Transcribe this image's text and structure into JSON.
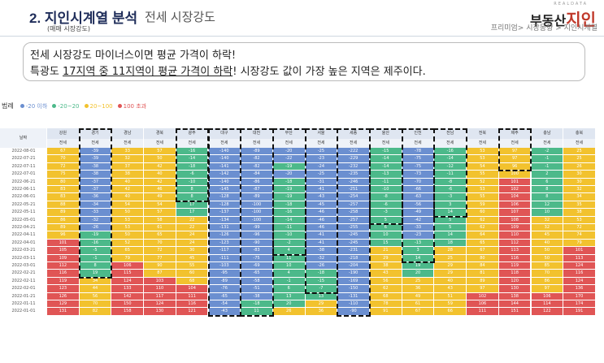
{
  "header": {
    "section_number": "2.",
    "section_title": "지인시계열 분석",
    "section_subtitle": "전세 시장강도",
    "small_note": "(매매 시장강도)",
    "logo_small": "REALDATA",
    "logo_text_a": "부동산",
    "logo_text_b": "지인",
    "breadcrumb": "프리미엄> 시장동향 > 지인시계열"
  },
  "callout": {
    "line1": "전세 시장강도 마이너스이면 평균 가격이 하락!",
    "line2_part1": "특광도 ",
    "line2_underline": "17지역 중 11지역이 평균 가격이 하락",
    "line2_part2": "! 시장강도 값이 가장 높은 지역은 제주이다."
  },
  "legend": {
    "label": "범례",
    "items": [
      {
        "text": "-20 이하",
        "color": "#6b8fd0"
      },
      {
        "text": "-20~20",
        "color": "#4cb98a"
      },
      {
        "text": "20~100",
        "color": "#f2c22e"
      },
      {
        "text": "100 초과",
        "color": "#e05555"
      }
    ]
  },
  "table": {
    "date_header": "날짜",
    "regions": [
      "강원",
      "경기",
      "경남",
      "경북",
      "광주",
      "대구",
      "대전",
      "부산",
      "서울",
      "세종",
      "울산",
      "인천",
      "전남",
      "전북",
      "제주",
      "충남",
      "충북"
    ],
    "subheader": "전세",
    "dates": [
      "2022-08-01",
      "2022-07-21",
      "2022-07-11",
      "2022-07-01",
      "2022-06-21",
      "2022-06-11",
      "2022-06-01",
      "2022-05-21",
      "2022-05-11",
      "2022-05-01",
      "2022-04-21",
      "2022-04-11",
      "2022-04-01",
      "2022-03-21",
      "2022-03-11",
      "2022-03-01",
      "2022-02-21",
      "2022-02-11",
      "2022-02-01",
      "2022-01-21",
      "2022-01-11",
      "2022-01-01"
    ],
    "rows": [
      [
        67,
        -39,
        33,
        57,
        -16,
        -140,
        -89,
        -20,
        -25,
        -222,
        -15,
        -78,
        -16,
        53,
        97,
        -2,
        25
      ],
      [
        70,
        -39,
        32,
        50,
        -14,
        -140,
        -82,
        -22,
        -23,
        -229,
        -14,
        -75,
        -14,
        53,
        97,
        -1,
        25
      ],
      [
        72,
        -38,
        37,
        42,
        -18,
        -141,
        -82,
        -19,
        -24,
        -232,
        -14,
        -75,
        -12,
        54,
        96,
        -1,
        26
      ],
      [
        75,
        -38,
        38,
        40,
        -6,
        -142,
        -84,
        -20,
        -25,
        -235,
        -13,
        -73,
        -11,
        55,
        100,
        2,
        30
      ],
      [
        80,
        -37,
        40,
        42,
        -10,
        -140,
        -86,
        -18,
        -31,
        -246,
        -11,
        -70,
        -8,
        52,
        101,
        6,
        30
      ],
      [
        83,
        -37,
        42,
        46,
        8,
        -145,
        -87,
        -19,
        -41,
        -251,
        -10,
        -66,
        -6,
        53,
        102,
        8,
        32
      ],
      [
        83,
        -36,
        40,
        49,
        8,
        -128,
        -89,
        -19,
        -43,
        -254,
        -8,
        -63,
        -3,
        55,
        104,
        8,
        34
      ],
      [
        88,
        -34,
        54,
        54,
        17,
        -128,
        -100,
        -18,
        -45,
        -257,
        -6,
        -56,
        3,
        59,
        106,
        12,
        35
      ],
      [
        89,
        -33,
        50,
        57,
        17,
        -137,
        -100,
        -16,
        -46,
        -258,
        -3,
        -49,
        14,
        60,
        107,
        10,
        38
      ],
      [
        86,
        -32,
        53,
        58,
        22,
        -134,
        -100,
        -14,
        -46,
        -257,
        5,
        -42,
        5,
        62,
        108,
        32,
        53
      ],
      [
        89,
        -26,
        53,
        61,
        22,
        -131,
        -99,
        -11,
        -46,
        -255,
        6,
        -33,
        5,
        62,
        109,
        32,
        72
      ],
      [
        96,
        -19,
        50,
        65,
        24,
        -126,
        -96,
        -10,
        -41,
        -245,
        10,
        -23,
        14,
        64,
        110,
        45,
        74
      ],
      [
        101,
        -16,
        52,
        70,
        24,
        -123,
        -90,
        -2,
        -41,
        -245,
        15,
        -13,
        18,
        65,
        112,
        40,
        79
      ],
      [
        105,
        -5,
        65,
        72,
        30,
        -117,
        -83,
        4,
        -38,
        -231,
        21,
        3,
        28,
        67,
        113,
        50,
        101
      ],
      [
        109,
        -1,
        79,
        77,
        45,
        -111,
        -75,
        11,
        -32,
        -218,
        29,
        14,
        25,
        80,
        116,
        50,
        113
      ],
      [
        112,
        8,
        106,
        90,
        55,
        -103,
        -69,
        10,
        -26,
        -204,
        38,
        19,
        29,
        84,
        119,
        85,
        124
      ],
      [
        116,
        19,
        115,
        87,
        60,
        -95,
        -65,
        4,
        -18,
        -190,
        43,
        20,
        29,
        81,
        118,
        70,
        116
      ],
      [
        119,
        34,
        124,
        103,
        68,
        -89,
        -58,
        -1,
        -15,
        -169,
        56,
        25,
        40,
        89,
        120,
        86,
        124
      ],
      [
        123,
        44,
        133,
        110,
        104,
        -76,
        -51,
        6,
        -7,
        -150,
        62,
        36,
        43,
        97,
        130,
        97,
        136
      ],
      [
        126,
        56,
        142,
        117,
        111,
        -65,
        -38,
        13,
        13,
        -131,
        68,
        49,
        51,
        102,
        138,
        106,
        170
      ],
      [
        129,
        70,
        150,
        124,
        116,
        -54,
        -18,
        20,
        29,
        -110,
        78,
        61,
        59,
        106,
        144,
        114,
        174
      ],
      [
        131,
        82,
        158,
        130,
        121,
        -43,
        11,
        26,
        36,
        -90,
        91,
        67,
        66,
        111,
        151,
        122,
        191
      ]
    ]
  }
}
